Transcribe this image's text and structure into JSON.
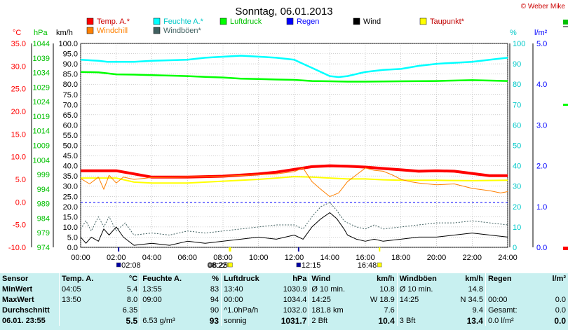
{
  "header": {
    "title": "Sonntag, 06.01.2013",
    "copyright": "© Weber Mike"
  },
  "axis_units": {
    "temp": "°C",
    "pressure": "hPa",
    "wind": "km/h",
    "humidity": "%",
    "rain": "l/m²"
  },
  "legend": [
    {
      "label": "Temp. A.*",
      "color": "#ff0000"
    },
    {
      "label": "Feuchte A.*",
      "color": "#00ffff"
    },
    {
      "label": "Luftdruck",
      "color": "#00ff00"
    },
    {
      "label": "Regen",
      "color": "#0000ff"
    },
    {
      "label": "Wind",
      "color": "#000000"
    },
    {
      "label": "Taupunkt*",
      "color": "#ffff00"
    },
    {
      "label": "Windchill",
      "color": "#ff8000"
    },
    {
      "label": "Windböen*",
      "color": "#406060"
    }
  ],
  "sun_markers": [
    {
      "label": "08:22",
      "color": "#ffff00"
    },
    {
      "label": "02:08",
      "color": "#0000a0"
    },
    {
      "label": "08:25",
      "color": "#ffff00"
    },
    {
      "label": "12:15",
      "color": "#0000a0"
    },
    {
      "label": "16:48",
      "color": "#ffff00"
    }
  ],
  "chart_data": {
    "type": "line",
    "x_range": [
      0,
      24
    ],
    "x_ticks": [
      "00:00",
      "02:00",
      "04:00",
      "06:00",
      "08:00",
      "10:00",
      "12:00",
      "14:00",
      "16:00",
      "18:00",
      "20:00",
      "22:00",
      "24:00"
    ],
    "axes": {
      "temp": {
        "unit": "°C",
        "range": [
          -10,
          35
        ],
        "ticks": [
          "35.0",
          "30.0",
          "25.0",
          "20.0",
          "15.0",
          "10.0",
          "5.0",
          "0.0",
          "-5.0",
          "-10.0"
        ]
      },
      "pressure": {
        "unit": "hPa",
        "range": [
          974,
          1044
        ],
        "ticks": [
          "1044",
          "1039",
          "1034",
          "1029",
          "1024",
          "1019",
          "1014",
          "1009",
          "1004",
          "999",
          "994",
          "989",
          "984",
          "979",
          "974"
        ]
      },
      "wind": {
        "unit": "km/h",
        "range": [
          0,
          100
        ],
        "ticks": [
          "100.0",
          "95.0",
          "90.0",
          "85.0",
          "80.0",
          "75.0",
          "70.0",
          "65.0",
          "60.0",
          "55.0",
          "50.0",
          "45.0",
          "40.0",
          "35.0",
          "30.0",
          "25.0",
          "20.0",
          "15.0",
          "10.0",
          "5.0",
          "0.0"
        ]
      },
      "humidity": {
        "unit": "%",
        "range": [
          0,
          100
        ],
        "ticks": [
          "100",
          "90",
          "80",
          "70",
          "60",
          "50",
          "40",
          "30",
          "20",
          "10",
          "0"
        ]
      },
      "rain": {
        "unit": "l/m²",
        "range": [
          0,
          5
        ],
        "ticks": [
          "5.0",
          "4.0",
          "3.0",
          "2.0",
          "1.0",
          "0.0"
        ]
      }
    },
    "series": [
      {
        "name": "Feuchte A.*",
        "axis": "humidity",
        "color": "#00ffff",
        "points": [
          [
            0,
            92
          ],
          [
            1,
            91.5
          ],
          [
            1.5,
            91
          ],
          [
            3,
            91
          ],
          [
            4,
            91.5
          ],
          [
            6,
            92
          ],
          [
            7,
            93
          ],
          [
            9,
            94
          ],
          [
            10,
            93.5
          ],
          [
            11,
            93
          ],
          [
            12,
            92
          ],
          [
            12.5,
            90
          ],
          [
            13,
            88
          ],
          [
            13.5,
            86
          ],
          [
            14,
            84
          ],
          [
            14.5,
            83.5
          ],
          [
            15,
            84
          ],
          [
            16,
            86
          ],
          [
            17,
            87
          ],
          [
            18,
            87.5
          ],
          [
            19,
            89
          ],
          [
            20,
            90
          ],
          [
            21,
            90.5
          ],
          [
            22,
            91
          ],
          [
            23,
            92
          ],
          [
            24,
            93
          ]
        ]
      },
      {
        "name": "Luftdruck",
        "axis": "pressure",
        "color": "#00ff00",
        "points": [
          [
            0,
            1034.2
          ],
          [
            1,
            1034.1
          ],
          [
            2,
            1033.4
          ],
          [
            3,
            1033.3
          ],
          [
            4,
            1033.1
          ],
          [
            6,
            1032.8
          ],
          [
            7,
            1032.5
          ],
          [
            8,
            1032.3
          ],
          [
            9,
            1031.9
          ],
          [
            10,
            1031.8
          ],
          [
            11,
            1031.6
          ],
          [
            12,
            1031.5
          ],
          [
            13,
            1031.1
          ],
          [
            14,
            1031.0
          ],
          [
            15,
            1030.9
          ],
          [
            16,
            1030.9
          ],
          [
            18,
            1031.0
          ],
          [
            20,
            1031.1
          ],
          [
            22,
            1031.4
          ],
          [
            24,
            1031.1
          ]
        ]
      },
      {
        "name": "Temp. A.*",
        "axis": "temp",
        "color": "#ff0000",
        "width": 4,
        "points": [
          [
            0,
            6.9
          ],
          [
            2,
            6.9
          ],
          [
            3,
            6.2
          ],
          [
            4,
            5.5
          ],
          [
            6,
            5.5
          ],
          [
            8,
            5.7
          ],
          [
            10,
            6.2
          ],
          [
            11,
            6.6
          ],
          [
            12,
            7.2
          ],
          [
            13,
            7.8
          ],
          [
            14,
            8.0
          ],
          [
            15,
            7.9
          ],
          [
            16,
            7.7
          ],
          [
            17,
            7.4
          ],
          [
            18,
            7.1
          ],
          [
            19,
            6.8
          ],
          [
            20,
            6.9
          ],
          [
            21,
            6.8
          ],
          [
            22,
            6.3
          ],
          [
            23,
            5.8
          ],
          [
            24,
            5.8
          ]
        ]
      },
      {
        "name": "Taupunkt*",
        "axis": "temp",
        "color": "#ffff00",
        "width": 2,
        "points": [
          [
            0,
            5.3
          ],
          [
            2,
            5.3
          ],
          [
            3,
            4.4
          ],
          [
            4,
            4.2
          ],
          [
            6,
            4.2
          ],
          [
            8,
            4.6
          ],
          [
            10,
            5.0
          ],
          [
            11,
            5.3
          ],
          [
            12,
            5.6
          ],
          [
            13,
            5.5
          ],
          [
            14,
            5.3
          ],
          [
            15,
            5.1
          ],
          [
            16,
            5.1
          ],
          [
            17,
            4.9
          ],
          [
            18,
            4.8
          ],
          [
            20,
            4.8
          ],
          [
            22,
            4.7
          ],
          [
            24,
            4.8
          ]
        ]
      },
      {
        "name": "Windchill",
        "axis": "temp",
        "color": "#ff8000",
        "width": 1,
        "points": [
          [
            0,
            5.2
          ],
          [
            0.5,
            4.0
          ],
          [
            1,
            5.5
          ],
          [
            1.3,
            2.8
          ],
          [
            1.6,
            5.9
          ],
          [
            2,
            4.2
          ],
          [
            2.4,
            5.5
          ],
          [
            3,
            5.0
          ],
          [
            4,
            5.4
          ],
          [
            6,
            5.5
          ],
          [
            8,
            5.7
          ],
          [
            10,
            6.0
          ],
          [
            11,
            6.2
          ],
          [
            12,
            6.7
          ],
          [
            12.5,
            7.5
          ],
          [
            13,
            4.5
          ],
          [
            13.5,
            2.8
          ],
          [
            14,
            1.2
          ],
          [
            14.5,
            2.0
          ],
          [
            15,
            4.5
          ],
          [
            15.5,
            6.0
          ],
          [
            16,
            7.5
          ],
          [
            16.5,
            7.0
          ],
          [
            17,
            6.8
          ],
          [
            17.5,
            6.0
          ],
          [
            18,
            5.0
          ],
          [
            18.5,
            4.5
          ],
          [
            19,
            4.2
          ],
          [
            20,
            3.8
          ],
          [
            21,
            4.0
          ],
          [
            22,
            3.0
          ],
          [
            23,
            2.5
          ],
          [
            23.6,
            2.0
          ],
          [
            24,
            2.3
          ]
        ]
      },
      {
        "name": "Windböen*",
        "axis": "wind",
        "color": "#406060",
        "width": 1,
        "dashed": true,
        "points": [
          [
            0,
            9
          ],
          [
            0.3,
            13
          ],
          [
            0.6,
            8
          ],
          [
            1,
            15
          ],
          [
            1.3,
            10
          ],
          [
            1.6,
            15
          ],
          [
            2,
            8
          ],
          [
            2.5,
            12
          ],
          [
            3,
            6
          ],
          [
            4,
            7
          ],
          [
            5,
            6
          ],
          [
            6,
            8
          ],
          [
            7,
            7
          ],
          [
            8,
            8
          ],
          [
            9,
            9
          ],
          [
            10,
            10
          ],
          [
            11,
            11
          ],
          [
            12,
            11
          ],
          [
            12.5,
            9
          ],
          [
            13,
            15
          ],
          [
            13.5,
            20
          ],
          [
            14,
            22
          ],
          [
            14.4,
            18
          ],
          [
            14.8,
            13
          ],
          [
            15,
            12
          ],
          [
            15.5,
            10
          ],
          [
            16,
            9
          ],
          [
            16.5,
            11
          ],
          [
            17,
            9
          ],
          [
            18,
            10
          ],
          [
            19,
            11
          ],
          [
            20,
            12
          ],
          [
            21,
            12
          ],
          [
            22,
            13
          ],
          [
            23,
            12
          ],
          [
            24,
            11
          ]
        ]
      },
      {
        "name": "Wind",
        "axis": "wind",
        "color": "#000000",
        "width": 1,
        "points": [
          [
            0,
            5
          ],
          [
            0.3,
            2
          ],
          [
            0.6,
            5
          ],
          [
            1,
            3
          ],
          [
            1.3,
            9
          ],
          [
            1.6,
            6
          ],
          [
            2,
            10
          ],
          [
            2.4,
            5
          ],
          [
            3,
            1
          ],
          [
            4,
            2
          ],
          [
            5,
            1
          ],
          [
            6,
            3
          ],
          [
            7,
            2
          ],
          [
            8,
            3
          ],
          [
            9,
            4
          ],
          [
            10,
            5
          ],
          [
            11,
            4
          ],
          [
            12,
            6
          ],
          [
            12.5,
            4
          ],
          [
            13,
            10
          ],
          [
            13.5,
            14
          ],
          [
            14,
            17
          ],
          [
            14.4,
            14
          ],
          [
            14.8,
            9
          ],
          [
            15,
            6
          ],
          [
            15.5,
            4
          ],
          [
            16,
            3
          ],
          [
            16.5,
            4
          ],
          [
            17,
            3
          ],
          [
            18,
            4
          ],
          [
            19,
            5
          ],
          [
            20,
            5
          ],
          [
            21,
            6
          ],
          [
            22,
            7
          ],
          [
            23,
            6
          ],
          [
            24,
            5
          ]
        ]
      }
    ]
  },
  "stats": {
    "headers": [
      "Sensor",
      "Temp. A.",
      "°C",
      "Feuchte A.",
      "%",
      "Luftdruck",
      "hPa",
      "Wind",
      "km/h",
      "Windböen",
      "km/h",
      "Regen",
      "l/m²"
    ],
    "rows": [
      [
        "MinWert",
        "04:05",
        "5.4",
        "13:55",
        "83",
        "13:40",
        "1030.9",
        "Ø 10 min.",
        "10.8",
        "Ø 10 min.",
        "14.8",
        "",
        ""
      ],
      [
        "MaxWert",
        "13:50",
        "8.0",
        "09:00",
        "94",
        "00:00",
        "1034.4",
        "14:25",
        "W 18.9",
        "14:25",
        "N 34.5",
        "00:00",
        "0.0"
      ],
      [
        "Durchschnitt",
        "",
        "6.35",
        "",
        "90",
        "^1.0hPa/h",
        "1032.0",
        "181.8 km",
        "7.6",
        "",
        "9.4",
        "Gesamt:",
        "0.0"
      ],
      [
        "06.01. 23:55",
        "",
        "5.5",
        "6.53 g/m³",
        "93",
        "sonnig",
        "1031.7",
        "2 Bft",
        "10.4",
        "3 Bft",
        "13.4",
        "0.0 l/m²",
        "0.0"
      ]
    ]
  }
}
